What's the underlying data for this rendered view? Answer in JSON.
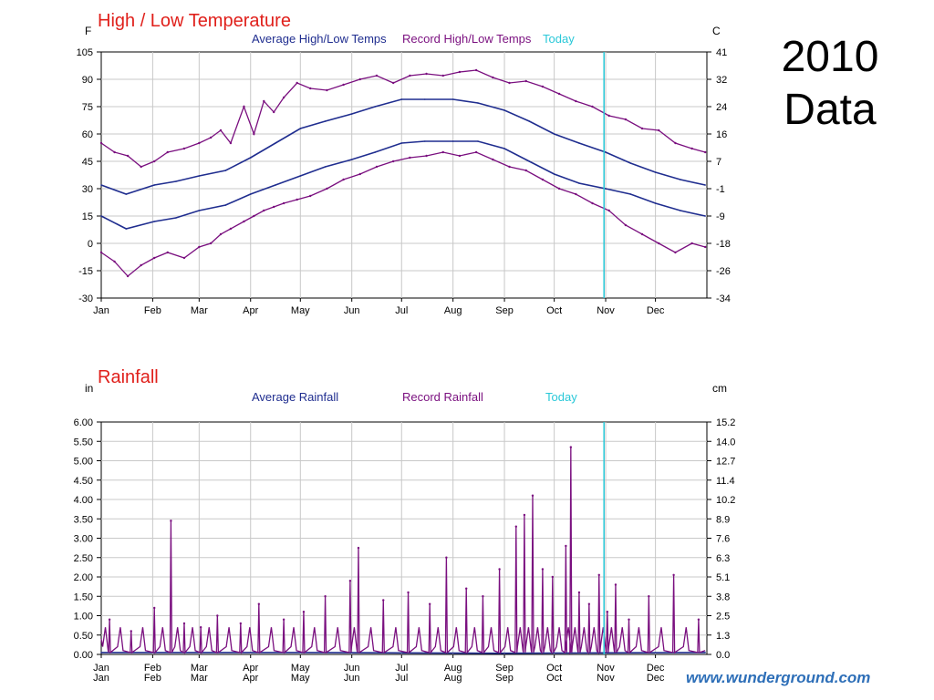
{
  "slide": {
    "title_line1": "2010",
    "title_line2": "Data",
    "credit": "www.wunderground.com"
  },
  "colors": {
    "average": "#1f2d8f",
    "record": "#7a0f7f",
    "today": "#29c8d8",
    "title_red": "#e0201b",
    "grid": "#c8c8c8"
  },
  "chart_data": [
    {
      "type": "line",
      "title": "High / Low Temperature",
      "left_unit": "F",
      "right_unit": "C",
      "legend": [
        "Average High/Low Temps",
        "Record High/Low Temps",
        "Today"
      ],
      "months": [
        "Jan",
        "Feb",
        "Mar",
        "Apr",
        "May",
        "Jun",
        "Jul",
        "Aug",
        "Sep",
        "Oct",
        "Nov",
        "Dec"
      ],
      "yticks_left": [
        "105",
        "90",
        "75",
        "60",
        "45",
        "30",
        "15",
        "0",
        "-15",
        "-30"
      ],
      "yticks_right": [
        "41",
        "32",
        "24",
        "16",
        "7",
        "-1",
        "-9",
        "-18",
        "-26",
        "-34"
      ],
      "ylim": [
        -30,
        105
      ],
      "xlim_days": [
        0,
        365
      ],
      "today_day": 303,
      "grid": true,
      "series": [
        {
          "name": "Average High/Low Temps",
          "kind": "average_high",
          "x": [
            0,
            15,
            32,
            45,
            59,
            75,
            90,
            105,
            120,
            135,
            151,
            165,
            181,
            195,
            212,
            227,
            243,
            258,
            273,
            288,
            304,
            319,
            334,
            349,
            364
          ],
          "y": [
            32,
            27,
            32,
            34,
            37,
            40,
            47,
            55,
            63,
            67,
            71,
            75,
            79,
            79,
            79,
            77,
            73,
            67,
            60,
            55,
            50,
            44,
            39,
            35,
            32
          ]
        },
        {
          "name": "Average High/Low Temps",
          "kind": "average_low",
          "x": [
            0,
            15,
            32,
            45,
            59,
            75,
            90,
            105,
            120,
            135,
            151,
            165,
            181,
            195,
            212,
            227,
            243,
            258,
            273,
            288,
            304,
            319,
            334,
            349,
            364
          ],
          "y": [
            15,
            8,
            12,
            14,
            18,
            21,
            27,
            32,
            37,
            42,
            46,
            50,
            55,
            56,
            56,
            56,
            52,
            45,
            38,
            33,
            30,
            27,
            22,
            18,
            15
          ]
        },
        {
          "name": "Record High/Low Temps",
          "kind": "record_high",
          "x": [
            0,
            8,
            16,
            24,
            32,
            40,
            50,
            59,
            66,
            72,
            78,
            86,
            92,
            98,
            104,
            110,
            118,
            126,
            136,
            146,
            156,
            166,
            176,
            186,
            196,
            206,
            216,
            226,
            236,
            246,
            256,
            266,
            276,
            286,
            296,
            306,
            316,
            326,
            336,
            346,
            356,
            364
          ],
          "y": [
            55,
            50,
            48,
            42,
            45,
            50,
            52,
            55,
            58,
            62,
            55,
            75,
            60,
            78,
            72,
            80,
            88,
            85,
            84,
            87,
            90,
            92,
            88,
            92,
            93,
            92,
            94,
            95,
            91,
            88,
            89,
            86,
            82,
            78,
            75,
            70,
            68,
            63,
            62,
            55,
            52,
            50
          ]
        },
        {
          "name": "Record High/Low Temps",
          "kind": "record_low",
          "x": [
            0,
            8,
            16,
            24,
            32,
            40,
            50,
            59,
            66,
            72,
            78,
            86,
            92,
            98,
            104,
            110,
            118,
            126,
            136,
            146,
            156,
            166,
            176,
            186,
            196,
            206,
            216,
            226,
            236,
            246,
            256,
            266,
            276,
            286,
            296,
            306,
            316,
            326,
            336,
            346,
            356,
            364
          ],
          "y": [
            -5,
            -10,
            -18,
            -12,
            -8,
            -5,
            -8,
            -2,
            0,
            5,
            8,
            12,
            15,
            18,
            20,
            22,
            24,
            26,
            30,
            35,
            38,
            42,
            45,
            47,
            48,
            50,
            48,
            50,
            46,
            42,
            40,
            35,
            30,
            27,
            22,
            18,
            10,
            5,
            0,
            -5,
            0,
            -2
          ]
        }
      ]
    },
    {
      "type": "bar",
      "title": "Rainfall",
      "left_unit": "in",
      "right_unit": "cm",
      "legend": [
        "Average Rainfall",
        "Record Rainfall",
        "Today"
      ],
      "months": [
        "Jan",
        "Feb",
        "Mar",
        "Apr",
        "May",
        "Jun",
        "Jul",
        "Aug",
        "Sep",
        "Oct",
        "Nov",
        "Dec"
      ],
      "yticks_left": [
        "6.00",
        "5.50",
        "5.00",
        "4.50",
        "4.00",
        "3.50",
        "3.00",
        "2.50",
        "2.00",
        "1.50",
        "1.00",
        "0.50",
        "0.00"
      ],
      "yticks_right": [
        "15.2",
        "14.0",
        "12.7",
        "11.4",
        "10.2",
        "8.9",
        "7.6",
        "6.3",
        "5.1",
        "3.8",
        "2.5",
        "1.3",
        "0.0"
      ],
      "ylim": [
        0,
        6
      ],
      "xlim_days": [
        0,
        365
      ],
      "today_day": 303,
      "grid": true,
      "series": [
        {
          "name": "Average Rainfall",
          "kind": "average",
          "x": [
            0,
            60,
            120,
            180,
            240,
            300,
            364
          ],
          "y": [
            0.05,
            0.05,
            0.05,
            0.04,
            0.03,
            0.04,
            0.05
          ]
        },
        {
          "name": "Record Rainfall",
          "kind": "record",
          "x": [
            5,
            18,
            32,
            42,
            50,
            60,
            70,
            84,
            95,
            110,
            122,
            135,
            150,
            155,
            170,
            185,
            198,
            208,
            220,
            230,
            240,
            250,
            255,
            260,
            266,
            272,
            280,
            283,
            288,
            294,
            300,
            305,
            310,
            318,
            330,
            345,
            360
          ],
          "y": [
            0.9,
            0.6,
            1.2,
            3.45,
            0.8,
            0.7,
            1.0,
            0.8,
            1.3,
            0.9,
            1.1,
            1.5,
            1.9,
            2.75,
            1.4,
            1.6,
            1.3,
            2.5,
            1.7,
            1.5,
            2.2,
            3.3,
            3.6,
            4.1,
            2.2,
            2.0,
            2.8,
            5.35,
            1.6,
            1.3,
            2.05,
            1.1,
            1.8,
            0.9,
            1.5,
            2.05,
            0.9
          ]
        }
      ]
    }
  ]
}
